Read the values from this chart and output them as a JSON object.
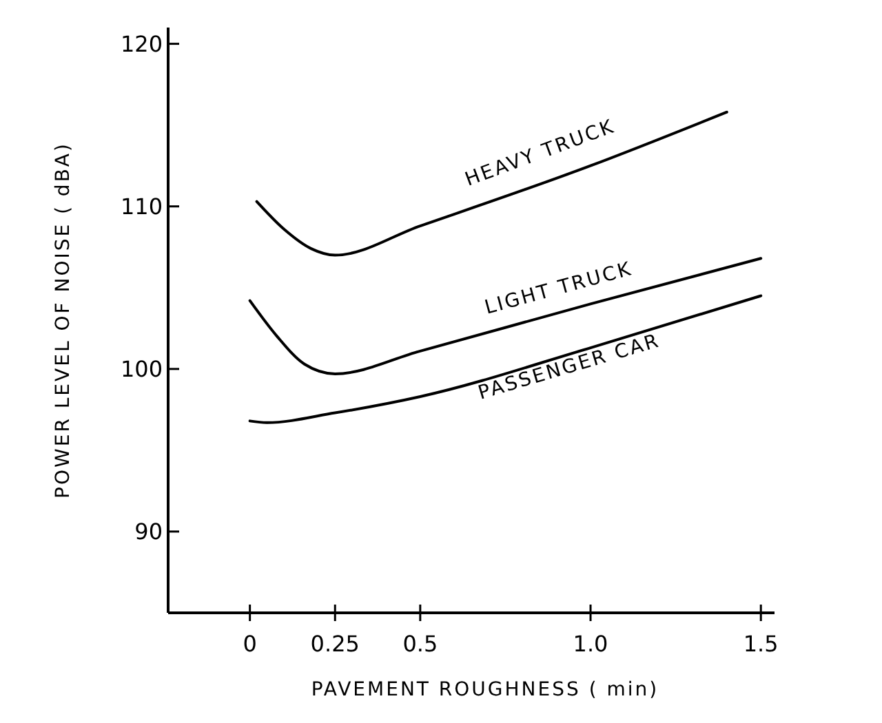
{
  "chart_data": {
    "type": "line",
    "xlabel": "PAVEMENT ROUGHNESS ( min)",
    "ylabel": "POWER LEVEL OF NOISE ( dBA)",
    "xlim": [
      -0.24,
      1.54
    ],
    "ylim": [
      85,
      121
    ],
    "xticks": [
      0,
      0.25,
      0.5,
      {
        "value": 1,
        "label": "1.0"
      },
      1.5
    ],
    "yticks": [
      90,
      100,
      110,
      120
    ],
    "series": [
      {
        "name": "HEAVY TRUCK",
        "color": "#000000",
        "x": [
          0.02,
          0.1,
          0.18,
          0.25,
          0.5,
          1.0,
          1.4
        ],
        "values": [
          110.3,
          108.6,
          107.4,
          107.0,
          108.8,
          112.5,
          115.8
        ]
      },
      {
        "name": "LIGHT TRUCK",
        "color": "#000000",
        "x": [
          0,
          0.08,
          0.16,
          0.25,
          0.5,
          1.0,
          1.5
        ],
        "values": [
          104.2,
          102.0,
          100.3,
          99.7,
          101.1,
          104.0,
          106.8
        ]
      },
      {
        "name": "PASSENGER CAR",
        "color": "#000000",
        "x": [
          0,
          0.05,
          0.25,
          0.5,
          1.0,
          1.5
        ],
        "values": [
          96.8,
          96.7,
          97.3,
          98.3,
          101.3,
          104.5
        ]
      }
    ]
  }
}
